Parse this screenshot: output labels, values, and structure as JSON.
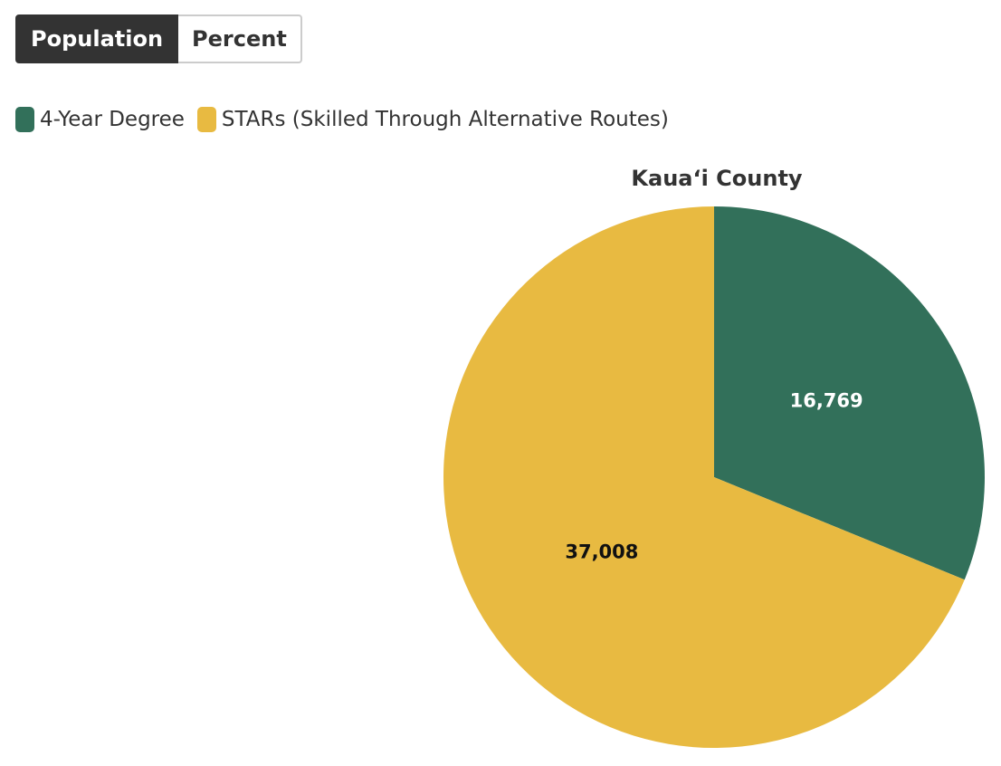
{
  "controls": {
    "options": [
      "Population",
      "Percent"
    ]
  },
  "chart_data": {
    "type": "pie",
    "title": "Kaua‘i County",
    "categories": [
      "4-Year Degree",
      "STARs (Skilled Through Alternative Routes)"
    ],
    "values": [
      16769,
      37008
    ],
    "value_labels": [
      "16,769",
      "37,008"
    ],
    "colors": [
      "#32705a",
      "#e8ba41"
    ]
  }
}
